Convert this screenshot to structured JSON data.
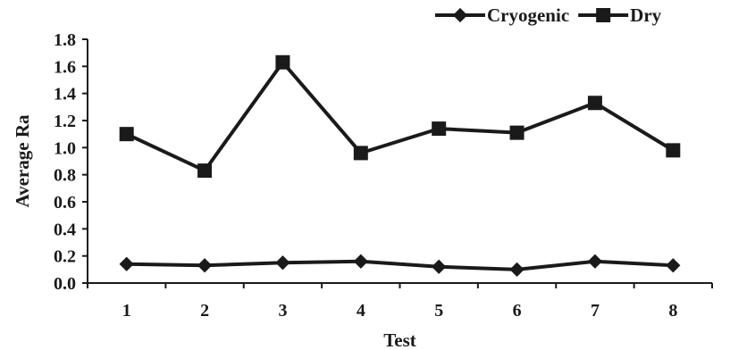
{
  "chart_data": {
    "type": "line",
    "title": "",
    "xlabel": "Test",
    "ylabel": "Average Ra",
    "x": [
      1,
      2,
      3,
      4,
      5,
      6,
      7,
      8
    ],
    "x_tick_labels": [
      "1",
      "2",
      "3",
      "4",
      "5",
      "6",
      "7",
      "8"
    ],
    "ylim": [
      0,
      1.8
    ],
    "y_tick_labels": [
      "0.0",
      "0.2",
      "0.4",
      "0.6",
      "0.8",
      "1.0",
      "1.2",
      "1.4",
      "1.6",
      "1.8"
    ],
    "grid": false,
    "legend_position": "top-right",
    "series": [
      {
        "name": "Cryogenic",
        "marker": "diamond",
        "color": "#1a1a1a",
        "values": [
          0.14,
          0.13,
          0.15,
          0.16,
          0.12,
          0.1,
          0.16,
          0.13
        ]
      },
      {
        "name": "Dry",
        "marker": "square",
        "color": "#1a1a1a",
        "values": [
          1.1,
          0.83,
          1.63,
          0.96,
          1.14,
          1.11,
          1.33,
          0.98
        ]
      }
    ]
  }
}
